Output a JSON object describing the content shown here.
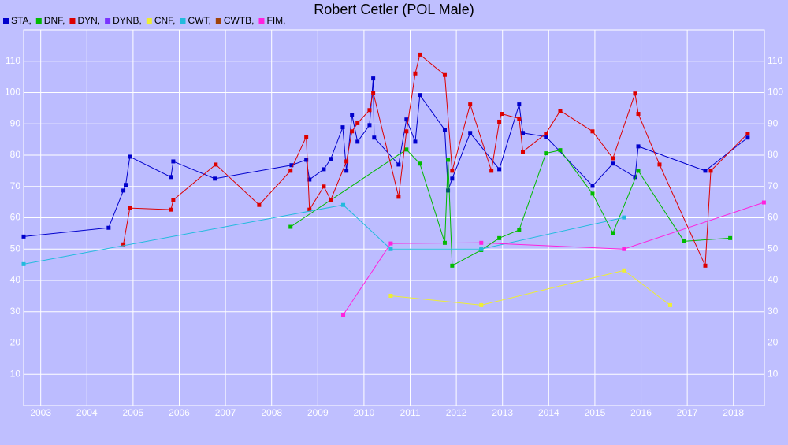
{
  "chart_data": {
    "type": "line",
    "title": "Robert Cetler (POL Male)",
    "xlim": [
      2002.63,
      2018.67
    ],
    "xticks": [
      2003,
      2004,
      2005,
      2006,
      2007,
      2008,
      2009,
      2010,
      2011,
      2012,
      2013,
      2014,
      2015,
      2016,
      2017,
      2018
    ],
    "ylim": [
      0,
      120
    ],
    "yticks": [
      10,
      20,
      30,
      40,
      50,
      60,
      70,
      80,
      90,
      100,
      110
    ],
    "grid": true,
    "series": [
      {
        "name": "STA,",
        "color": "#0000cc",
        "x": [
          2002.63,
          2004.47,
          2004.79,
          2004.84,
          2004.93,
          2005.82,
          2005.87,
          2006.77,
          2008.43,
          2008.75,
          2008.82,
          2009.13,
          2009.28,
          2009.54,
          2009.62,
          2009.74,
          2009.86,
          2010.12,
          2010.2,
          2010.22,
          2010.75,
          2010.92,
          2011.11,
          2011.21,
          2011.75,
          2011.82,
          2011.91,
          2012.3,
          2012.93,
          2013.36,
          2013.44,
          2013.94,
          2014.95,
          2015.39,
          2015.87,
          2015.94,
          2017.39,
          2018.31
        ],
        "values": [
          54.0,
          56.8,
          68.7,
          70.5,
          79.5,
          73.0,
          78.0,
          72.5,
          76.8,
          78.5,
          72.2,
          75.5,
          78.8,
          88.9,
          75.0,
          92.9,
          84.3,
          89.6,
          104.5,
          85.6,
          77.0,
          91.4,
          84.3,
          99.2,
          88.1,
          68.7,
          72.5,
          87.1,
          75.5,
          96.2,
          87.1,
          85.9,
          70.2,
          77.3,
          73.0,
          82.8,
          75.0,
          85.6
        ]
      },
      {
        "name": "DNF,",
        "color": "#00bb00",
        "x": [
          2008.41,
          2010.92,
          2011.21,
          2011.75,
          2011.82,
          2011.91,
          2012.54,
          2012.93,
          2013.36,
          2013.94,
          2014.25,
          2014.95,
          2015.39,
          2015.94,
          2016.93,
          2017.93
        ],
        "values": [
          57.1,
          81.8,
          77.3,
          52.0,
          78.5,
          44.7,
          49.7,
          53.5,
          56.1,
          80.6,
          81.6,
          67.7,
          55.1,
          75.0,
          52.5,
          53.5
        ]
      },
      {
        "name": "DYN,",
        "color": "#dd0000",
        "x": [
          2004.79,
          2004.93,
          2005.82,
          2005.87,
          2006.79,
          2007.73,
          2008.41,
          2008.75,
          2008.82,
          2009.13,
          2009.28,
          2009.62,
          2009.74,
          2009.86,
          2010.12,
          2010.2,
          2010.75,
          2010.92,
          2011.11,
          2011.21,
          2011.75,
          2011.91,
          2012.3,
          2012.76,
          2012.93,
          2012.98,
          2013.36,
          2013.44,
          2013.94,
          2014.25,
          2014.95,
          2015.39,
          2015.87,
          2015.94,
          2016.4,
          2017.39,
          2017.51,
          2018.31
        ],
        "values": [
          51.5,
          63.1,
          62.6,
          65.7,
          77.0,
          64.1,
          75.0,
          85.9,
          62.6,
          70.0,
          65.7,
          78.0,
          87.6,
          90.2,
          94.4,
          100.0,
          66.7,
          87.6,
          106.1,
          112.1,
          105.6,
          75.0,
          96.2,
          75.0,
          90.7,
          93.2,
          91.7,
          81.1,
          86.9,
          94.2,
          87.6,
          79.0,
          99.7,
          93.2,
          77.0,
          44.7,
          75.0,
          86.9
        ]
      },
      {
        "name": "DYNB,",
        "color": "#7a33ff",
        "x": [],
        "values": []
      },
      {
        "name": "CNF,",
        "color": "#eeee33",
        "x": [
          2010.58,
          2012.54,
          2015.63,
          2016.63
        ],
        "values": [
          35.1,
          32.1,
          43.2,
          32.1
        ]
      },
      {
        "name": "CWT,",
        "color": "#22bbdd",
        "x": [
          2002.63,
          2009.55,
          2010.58,
          2012.54,
          2015.63
        ],
        "values": [
          45.2,
          64.1,
          50.0,
          50.0,
          60.1
        ]
      },
      {
        "name": "CWTB,",
        "color": "#a0420a",
        "x": [],
        "values": []
      },
      {
        "name": "FIM,",
        "color": "#ff22dd",
        "x": [
          2009.55,
          2010.58,
          2012.54,
          2015.63,
          2018.66
        ],
        "values": [
          29.0,
          51.8,
          52.0,
          50.0,
          64.9
        ]
      }
    ]
  }
}
